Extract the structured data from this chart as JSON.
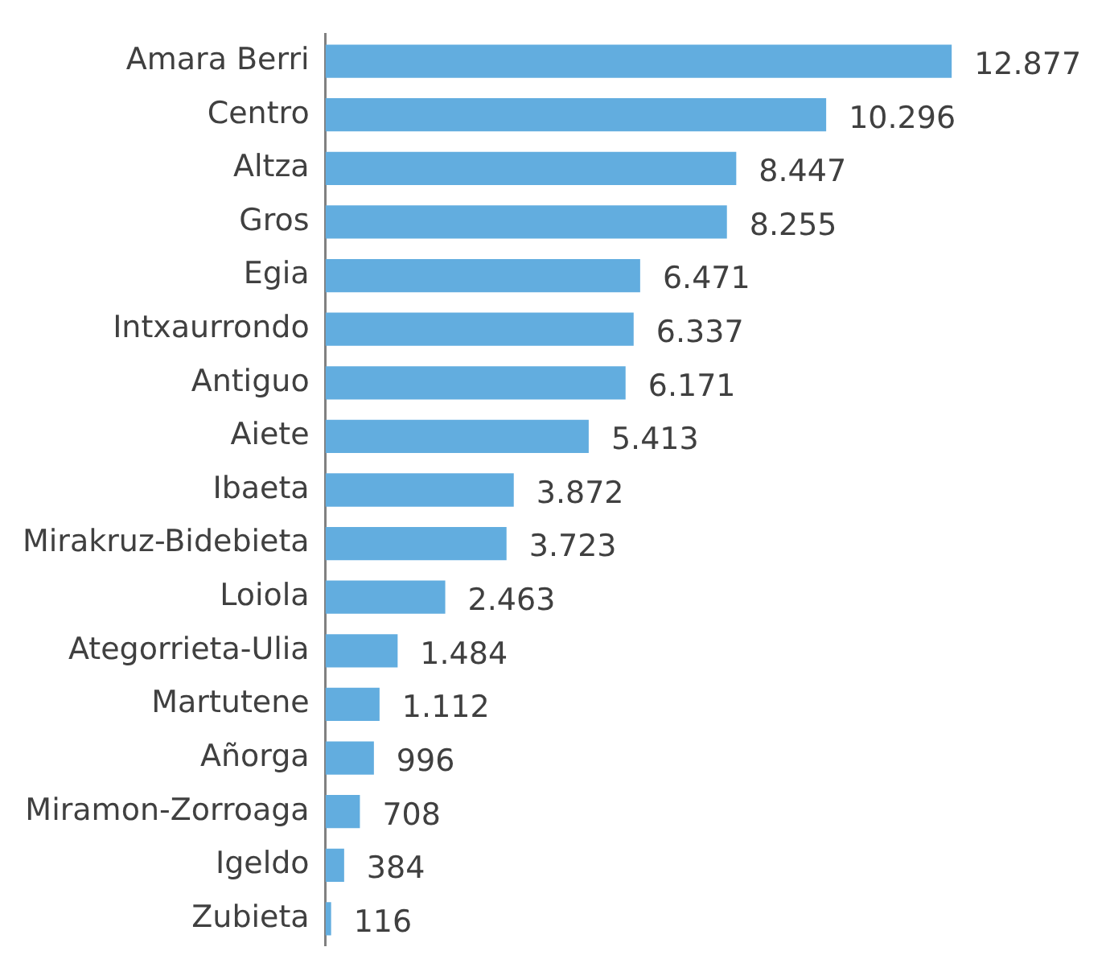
{
  "chart_data": {
    "type": "bar",
    "orientation": "horizontal",
    "categories": [
      "Amara Berri",
      "Centro",
      "Altza",
      "Gros",
      "Egia",
      "Intxaurrondo",
      "Antiguo",
      "Aiete",
      "Ibaeta",
      "Mirakruz-Bidebieta",
      "Loiola",
      "Ategorrieta-Ulia",
      "Martutene",
      "Añorga",
      "Miramon-Zorroaga",
      "Igeldo",
      "Zubieta"
    ],
    "values": [
      12877,
      10296,
      8447,
      8255,
      6471,
      6337,
      6171,
      5413,
      3872,
      3723,
      2463,
      1484,
      1112,
      996,
      708,
      384,
      116
    ],
    "value_labels": [
      "12.877",
      "10.296",
      "8.447",
      "8.255",
      "6.471",
      "6.337",
      "6.171",
      "5.413",
      "3.872",
      "3.723",
      "2.463",
      "1.484",
      "1.112",
      "996",
      "708",
      "384",
      "116"
    ],
    "color": "#62addf",
    "tick_labels": "y"
  }
}
